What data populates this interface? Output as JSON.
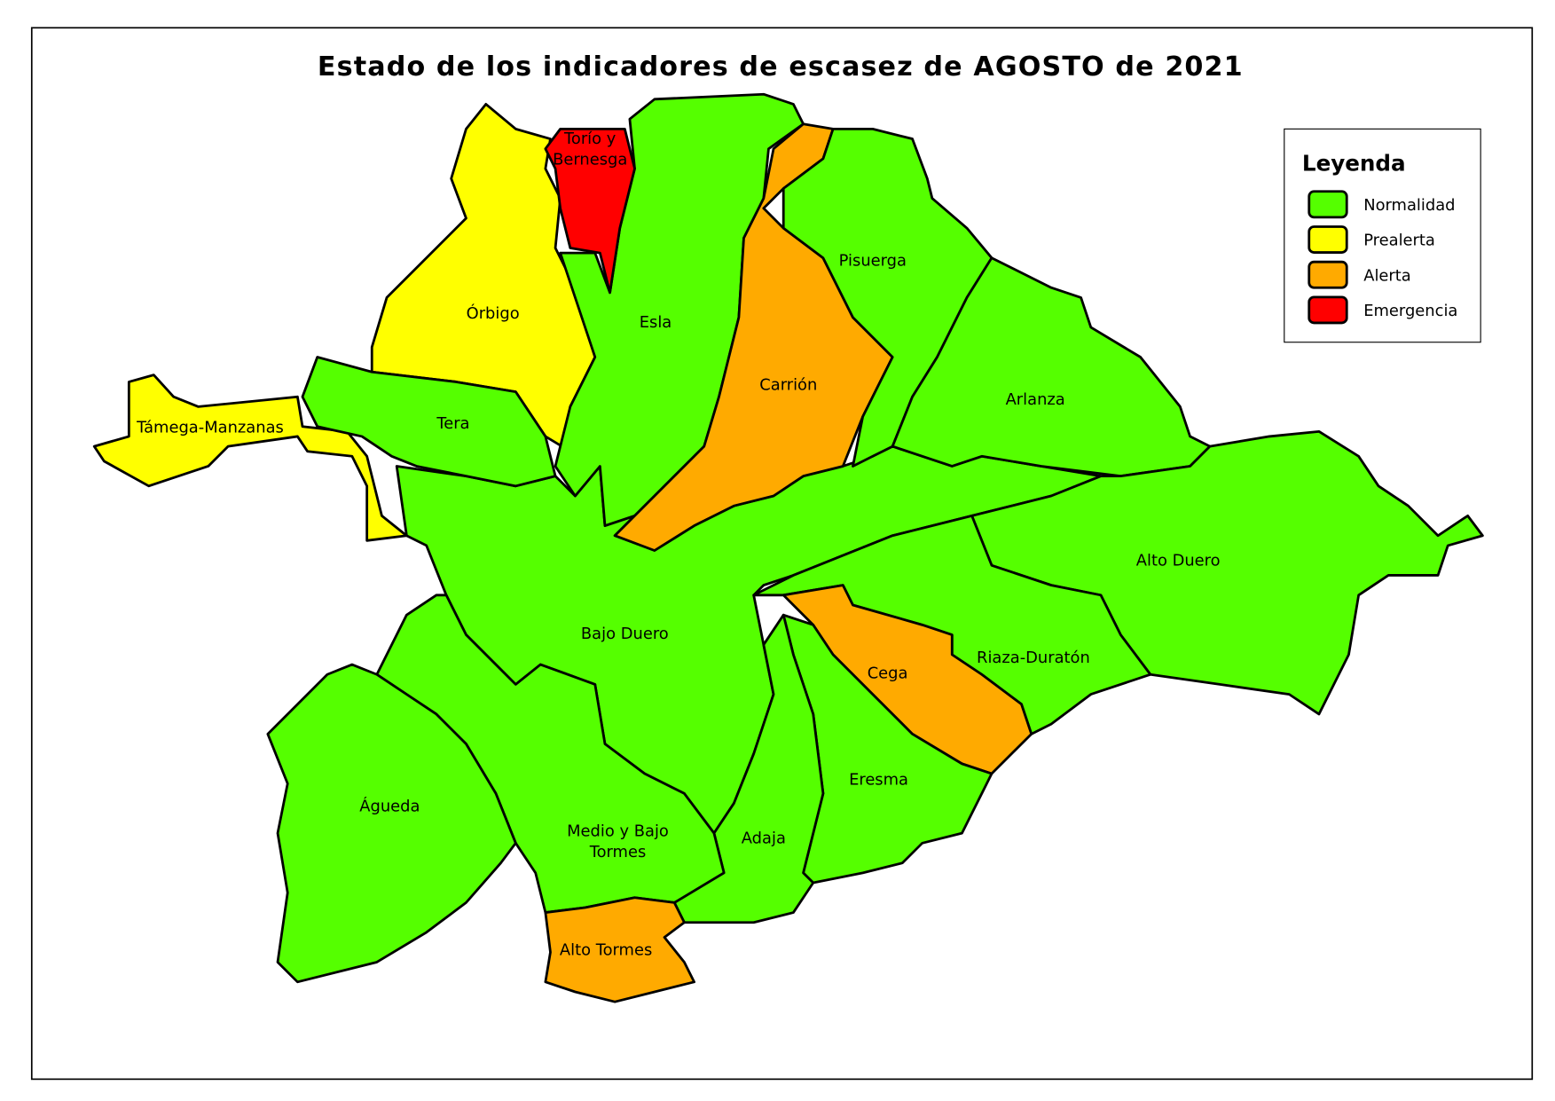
{
  "title": "Estado de los indicadores de escasez de AGOSTO de 2021",
  "legend": {
    "title": "Leyenda",
    "items": [
      {
        "label": "Normalidad",
        "color": "#55ff00"
      },
      {
        "label": "Prealerta",
        "color": "#ffff00"
      },
      {
        "label": "Alerta",
        "color": "#ffaa00"
      },
      {
        "label": "Emergencia",
        "color": "#ff0000"
      }
    ]
  },
  "regions": [
    {
      "label": [
        "Bajo Duero"
      ],
      "color": "#55ff00"
    },
    {
      "label": [
        "Órbigo"
      ],
      "color": "#ffff00"
    },
    {
      "label": [
        "Támega-Manzanas"
      ],
      "color": "#ffff00"
    },
    {
      "label": [
        "Tera"
      ],
      "color": "#55ff00"
    },
    {
      "label": [
        "Esla"
      ],
      "color": "#55ff00"
    },
    {
      "label": [
        "Torío y",
        "Bernesga"
      ],
      "color": "#ff0000"
    },
    {
      "label": [
        "Carrión"
      ],
      "color": "#ffaa00"
    },
    {
      "label": [
        "Pisuerga"
      ],
      "color": "#55ff00"
    },
    {
      "label": [
        "Arlanza"
      ],
      "color": "#55ff00"
    },
    {
      "label": [
        "Alto Duero"
      ],
      "color": "#55ff00"
    },
    {
      "label": [
        "Riaza-Duratón"
      ],
      "color": "#55ff00"
    },
    {
      "label": [
        "Cega"
      ],
      "color": "#ffaa00"
    },
    {
      "label": [
        "Eresma"
      ],
      "color": "#55ff00"
    },
    {
      "label": [
        "Adaja"
      ],
      "color": "#55ff00"
    },
    {
      "label": [
        "Medio y Bajo",
        "Tormes"
      ],
      "color": "#55ff00"
    },
    {
      "label": [
        "Águeda"
      ],
      "color": "#55ff00"
    },
    {
      "label": [
        "Alto Tormes"
      ],
      "color": "#ffaa00"
    }
  ]
}
